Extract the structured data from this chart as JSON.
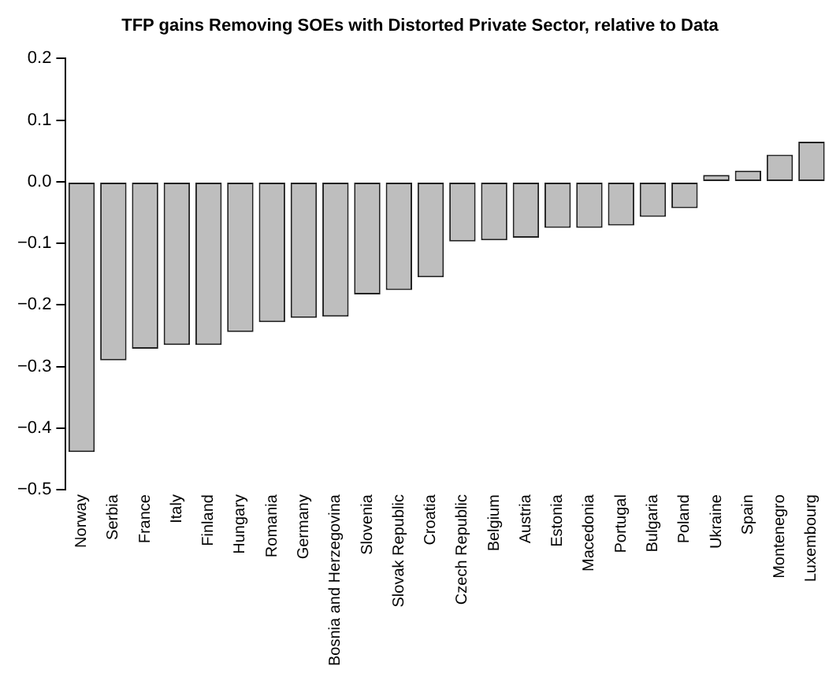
{
  "chart_data": {
    "type": "bar",
    "title": "TFP gains Removing SOEs with Distorted Private Sector, relative to Data",
    "categories": [
      "Norway",
      "Serbia",
      "France",
      "Italy",
      "Finland",
      "Hungary",
      "Romania",
      "Germany",
      "Bosnia and Herzegovina",
      "Slovenia",
      "Slovak Republic",
      "Croatia",
      "Czech Republic",
      "Belgium",
      "Austria",
      "Estonia",
      "Macedonia",
      "Portugal",
      "Bulgaria",
      "Poland",
      "Ukraine",
      "Spain",
      "Montenegro",
      "Luxembourg"
    ],
    "values": [
      -0.439,
      -0.29,
      -0.271,
      -0.265,
      -0.265,
      -0.244,
      -0.228,
      -0.221,
      -0.219,
      -0.183,
      -0.176,
      -0.155,
      -0.097,
      -0.095,
      -0.091,
      -0.075,
      -0.075,
      -0.071,
      -0.057,
      -0.043,
      0.011,
      0.018,
      0.044,
      0.065
    ],
    "color": "#bebebe",
    "ylim": [
      -0.5,
      0.2
    ],
    "yticks": [
      {
        "value": -0.5,
        "label": "−0.5"
      },
      {
        "value": -0.4,
        "label": "−0.4"
      },
      {
        "value": -0.3,
        "label": "−0.3"
      },
      {
        "value": -0.2,
        "label": "−0.2"
      },
      {
        "value": -0.1,
        "label": "−0.1"
      },
      {
        "value": 0,
        "label": "0.0"
      },
      {
        "value": 0.1,
        "label": "0.1"
      },
      {
        "value": 0.2,
        "label": "0.2"
      }
    ],
    "grid": false,
    "legend": false
  }
}
